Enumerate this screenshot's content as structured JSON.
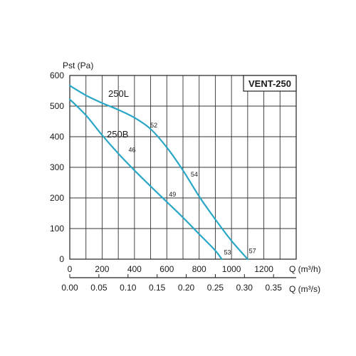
{
  "chart_data": {
    "type": "line",
    "title": "",
    "model_label": "VENT-250",
    "ylabel": "Pst (Pa)",
    "xlabel": "Q (m³/h)",
    "xlabel2": "Q (m³/s)",
    "xlim": [
      0,
      1400
    ],
    "ylim": [
      0,
      600
    ],
    "xticks": [
      0,
      200,
      400,
      600,
      800,
      1000,
      1200
    ],
    "xtick_labels": [
      "0",
      "200",
      "400",
      "600",
      "800",
      "1000",
      "1200"
    ],
    "yticks": [
      0,
      100,
      200,
      300,
      400,
      500,
      600
    ],
    "ytick_labels": [
      "0",
      "100",
      "200",
      "300",
      "400",
      "500",
      "600"
    ],
    "x2ticks": [
      0,
      0.05,
      0.1,
      0.15,
      0.2,
      0.25,
      0.3,
      0.35
    ],
    "x2tick_labels": [
      "0.00",
      "0.05",
      "0.10",
      "0.15",
      "0.20",
      "0.25",
      "0.30",
      "0.35"
    ],
    "grid": true,
    "line_color": "#2aa7c6",
    "series": [
      {
        "name": "250L",
        "x": [
          0,
          100,
          200,
          300,
          400,
          500,
          600,
          700,
          800,
          900,
          1000,
          1100
        ],
        "y": [
          567,
          535,
          510,
          488,
          462,
          425,
          365,
          290,
          205,
          130,
          60,
          0
        ]
      },
      {
        "name": "250B",
        "x": [
          0,
          100,
          200,
          300,
          400,
          500,
          600,
          700,
          800,
          900,
          940
        ],
        "y": [
          522,
          470,
          405,
          345,
          290,
          238,
          187,
          136,
          82,
          28,
          0
        ]
      }
    ],
    "annotations": [
      {
        "text": "52",
        "x": 520,
        "y": 430
      },
      {
        "text": "54",
        "x": 770,
        "y": 270
      },
      {
        "text": "57",
        "x": 1130,
        "y": 20
      },
      {
        "text": "46",
        "x": 385,
        "y": 350
      },
      {
        "text": "49",
        "x": 635,
        "y": 205
      },
      {
        "text": "53",
        "x": 975,
        "y": 15
      }
    ]
  }
}
